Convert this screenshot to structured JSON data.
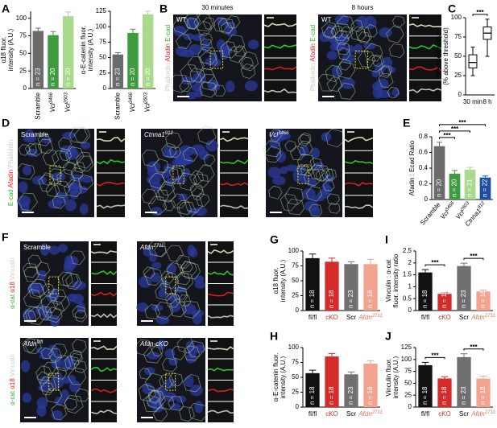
{
  "panels": {
    "letters": [
      "A",
      "B",
      "C",
      "D",
      "E",
      "F",
      "G",
      "H",
      "I",
      "J"
    ],
    "B": {
      "images": [
        {
          "title": "30 minutes",
          "label": "WT"
        },
        {
          "title": "8 hours",
          "label": "WT"
        }
      ],
      "channels": [
        "Phalloidin",
        "Afadin",
        "E-cad"
      ],
      "channel_colors": [
        "#cccccc",
        "#e02020",
        "#33b233"
      ]
    },
    "D": {
      "images": [
        {
          "label": "Scramble"
        },
        {
          "label": "Ctnna1912"
        },
        {
          "label": "Vcl3466"
        }
      ],
      "channels": [
        "E-cad",
        "Afadin",
        "Phalloidin"
      ],
      "channel_colors": [
        "#33b233",
        "#e02020",
        "#cccccc"
      ]
    },
    "F": {
      "images": [
        {
          "label": "Scramble"
        },
        {
          "label": "Afdn2711"
        },
        {
          "label": "Afdnfl/fl"
        },
        {
          "label": "Afdn-cKO"
        }
      ],
      "channels": [
        "α-cat",
        "α18",
        "Vinculin"
      ],
      "channel_colors": [
        "#33b233",
        "#e02020",
        "#cccccc"
      ]
    }
  },
  "chart_data": [
    {
      "type": "bar",
      "y_label": [
        "α18 fluor.",
        "intensity (A.U.)"
      ],
      "categories": [
        "Scramble",
        "Vcl3466",
        "Vcl2603"
      ],
      "values": [
        82,
        76,
        103
      ],
      "errors": [
        4,
        5,
        6
      ],
      "colors": [
        "#6b6b6b",
        "#3f9b3f",
        "#a9d98c"
      ],
      "bar_labels": [
        "n = 23",
        "n = 20",
        "n = 20"
      ],
      "ylim": [
        0,
        110
      ],
      "yticks": [
        0,
        25,
        50,
        75,
        100
      ]
    },
    {
      "type": "bar",
      "y_label": [
        "α-E-catenin fluor.",
        "intensity (A.U.)"
      ],
      "categories": [
        "Scramble",
        "Vcl3466",
        "Vcl2603"
      ],
      "values": [
        55,
        90,
        120
      ],
      "errors": [
        3,
        6,
        5
      ],
      "colors": [
        "#6b6b6b",
        "#3f9b3f",
        "#a9d98c"
      ],
      "bar_labels": [
        "n = 23",
        "n = 20",
        "n = 20"
      ],
      "ylim": [
        0,
        125
      ],
      "yticks": [
        0,
        25,
        50,
        75,
        100,
        125
      ]
    },
    {
      "type": "box",
      "y_label": [
        "Ecad continuity",
        "(% above threshold)"
      ],
      "categories": [
        "30 min",
        "8 h"
      ],
      "boxes": [
        {
          "min": 25,
          "q1": 35,
          "median": 42,
          "q3": 52,
          "max": 62
        },
        {
          "min": 50,
          "q1": 72,
          "median": 80,
          "q3": 88,
          "max": 98
        }
      ],
      "ylim": [
        0,
        100
      ],
      "yticks": [
        0,
        25,
        50,
        75,
        100
      ],
      "brackets": [
        {
          "from": "30 min",
          "to": "8 h",
          "label": "***"
        }
      ]
    },
    {
      "type": "bar",
      "y_label": [
        "Afadin : Ecad Ratio"
      ],
      "categories": [
        "Scramble",
        "Vcl3466",
        "Vcl2603",
        "Ctnna1912"
      ],
      "values": [
        0.68,
        0.33,
        0.38,
        0.28
      ],
      "errors": [
        0.05,
        0.04,
        0.03,
        0.02
      ],
      "colors": [
        "#6b6b6b",
        "#3f9b3f",
        "#a9d98c",
        "#1d4ea0"
      ],
      "bar_labels": [
        "n = 20",
        "n = 20",
        "n = 21",
        "n = 22"
      ],
      "ylim": [
        0,
        0.8
      ],
      "yticks": [
        0,
        0.2,
        0.4,
        0.6,
        0.8
      ],
      "brackets": [
        {
          "from": "Scramble",
          "to": "Vcl3466",
          "label": "***"
        },
        {
          "from": "Scramble",
          "to": "Vcl2603",
          "label": "***"
        },
        {
          "from": "Scramble",
          "to": "Ctnna1912",
          "label": "***"
        }
      ]
    },
    {
      "type": "bar",
      "y_label": [
        "α18 fluor.",
        "intensity (A.U.)"
      ],
      "categories": [
        "fl/fl",
        "cKO",
        "Scr",
        "Afdn2711"
      ],
      "category_colors": [
        "#000000",
        "#d42b2b",
        "#000000",
        "#e8735a"
      ],
      "values": [
        88,
        82,
        78,
        78
      ],
      "errors": [
        7,
        6,
        4,
        8
      ],
      "colors": [
        "#111111",
        "#d42b2b",
        "#707070",
        "#f2a48e"
      ],
      "bar_labels": [
        "n = 18",
        "n = 18",
        "n = 23",
        "n = 18"
      ],
      "ylim": [
        0,
        100
      ],
      "yticks": [
        0,
        25,
        50,
        75,
        100
      ]
    },
    {
      "type": "bar",
      "y_label": [
        "Vinculin : α-cat",
        "fluor. intensity ratio"
      ],
      "categories": [
        "fl/fl",
        "cKO",
        "Scr",
        "Afdn2711"
      ],
      "category_colors": [
        "#000000",
        "#d42b2b",
        "#000000",
        "#e8735a"
      ],
      "values": [
        1.6,
        0.7,
        1.87,
        0.8
      ],
      "errors": [
        0.12,
        0.05,
        0.12,
        0.06
      ],
      "colors": [
        "#111111",
        "#d42b2b",
        "#707070",
        "#f2a48e"
      ],
      "bar_labels": [
        "n = 18",
        "n = 18",
        "n = 23",
        "n = 18"
      ],
      "ylim": [
        0,
        2.5
      ],
      "yticks": [
        0,
        0.5,
        1,
        1.5,
        2,
        2.5
      ],
      "brackets": [
        {
          "from": "fl/fl",
          "to": "cKO",
          "label": "***"
        },
        {
          "from": "Scr",
          "to": "Afdn2711",
          "label": "***"
        }
      ]
    },
    {
      "type": "bar",
      "y_label": [
        "α-E-catenin fluor.",
        "intensity (A.U.)"
      ],
      "categories": [
        "fl/fl",
        "cKO",
        "Scr",
        "Afdn2711"
      ],
      "category_colors": [
        "#000000",
        "#d42b2b",
        "#000000",
        "#e8735a"
      ],
      "values": [
        57,
        85,
        55,
        73
      ],
      "errors": [
        5,
        5,
        4,
        5
      ],
      "colors": [
        "#111111",
        "#d42b2b",
        "#707070",
        "#f2a48e"
      ],
      "bar_labels": [
        "n = 18",
        "n = 18",
        "n = 23",
        "n = 18"
      ],
      "ylim": [
        0,
        100
      ],
      "yticks": [
        0,
        25,
        50,
        75,
        100
      ]
    },
    {
      "type": "bar",
      "y_label": [
        "Vinculin fluor.",
        "intensity (A.U.)"
      ],
      "categories": [
        "fl/fl",
        "cKO",
        "Scr",
        "Afdn2711"
      ],
      "category_colors": [
        "#000000",
        "#d42b2b",
        "#000000",
        "#e8735a"
      ],
      "values": [
        88,
        60,
        105,
        60
      ],
      "errors": [
        6,
        4,
        7,
        5
      ],
      "colors": [
        "#111111",
        "#d42b2b",
        "#707070",
        "#f2a48e"
      ],
      "bar_labels": [
        "n = 18",
        "n = 18",
        "n = 23",
        "n = 18"
      ],
      "ylim": [
        0,
        125
      ],
      "yticks": [
        0,
        25,
        50,
        75,
        100,
        125
      ],
      "brackets": [
        {
          "from": "fl/fl",
          "to": "cKO",
          "label": "***"
        },
        {
          "from": "Scr",
          "to": "Afdn2711",
          "label": "***"
        }
      ]
    }
  ]
}
